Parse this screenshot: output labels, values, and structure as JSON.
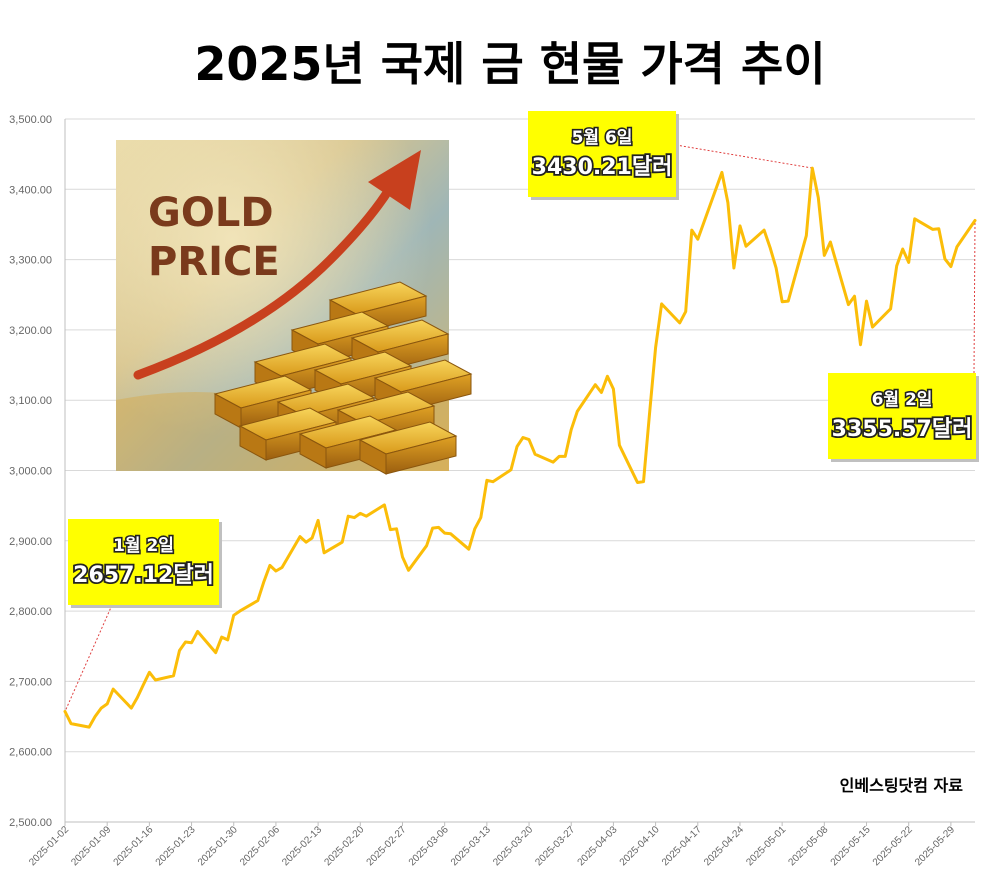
{
  "chart_data": {
    "type": "line",
    "title": "2025년 국제 금 현물 가격 추이",
    "xlabel": "",
    "ylabel": "",
    "ylim": [
      2500,
      3500
    ],
    "y_ticks": [
      "2,500.00",
      "2,600.00",
      "2,700.00",
      "2,800.00",
      "2,900.00",
      "3,000.00",
      "3,100.00",
      "3,200.00",
      "3,300.00",
      "3,400.00",
      "3,500.00"
    ],
    "x_ticks": [
      "2025-01-02",
      "2025-01-09",
      "2025-01-16",
      "2025-01-23",
      "2025-01-30",
      "2025-02-06",
      "2025-02-13",
      "2025-02-20",
      "2025-02-27",
      "2025-03-06",
      "2025-03-13",
      "2025-03-20",
      "2025-03-27",
      "2025-04-03",
      "2025-04-10",
      "2025-04-17",
      "2025-04-24",
      "2025-05-01",
      "2025-05-08",
      "2025-05-15",
      "2025-05-22",
      "2025-05-29"
    ],
    "grid": true,
    "legend": "none",
    "series_color": "#fbbd08",
    "series": [
      {
        "x": [
          "2025-01-02",
          "2025-01-03",
          "2025-01-06",
          "2025-01-07",
          "2025-01-08",
          "2025-01-09",
          "2025-01-10",
          "2025-01-13",
          "2025-01-14",
          "2025-01-15",
          "2025-01-16",
          "2025-01-17",
          "2025-01-20",
          "2025-01-21",
          "2025-01-22",
          "2025-01-23",
          "2025-01-24",
          "2025-01-27",
          "2025-01-28",
          "2025-01-29",
          "2025-01-30",
          "2025-01-31",
          "2025-02-03",
          "2025-02-04",
          "2025-02-05",
          "2025-02-06",
          "2025-02-07",
          "2025-02-10",
          "2025-02-11",
          "2025-02-12",
          "2025-02-13",
          "2025-02-14",
          "2025-02-17",
          "2025-02-18",
          "2025-02-19",
          "2025-02-20",
          "2025-02-21",
          "2025-02-24",
          "2025-02-25",
          "2025-02-26",
          "2025-02-27",
          "2025-02-28",
          "2025-03-03",
          "2025-03-04",
          "2025-03-05",
          "2025-03-06",
          "2025-03-07",
          "2025-03-10",
          "2025-03-11",
          "2025-03-12",
          "2025-03-13",
          "2025-03-14",
          "2025-03-17",
          "2025-03-18",
          "2025-03-19",
          "2025-03-20",
          "2025-03-21",
          "2025-03-24",
          "2025-03-25",
          "2025-03-26",
          "2025-03-27",
          "2025-03-28",
          "2025-03-31",
          "2025-04-01",
          "2025-04-02",
          "2025-04-03",
          "2025-04-04",
          "2025-04-07",
          "2025-04-08",
          "2025-04-09",
          "2025-04-10",
          "2025-04-11",
          "2025-04-14",
          "2025-04-15",
          "2025-04-16",
          "2025-04-17",
          "2025-04-21",
          "2025-04-22",
          "2025-04-23",
          "2025-04-24",
          "2025-04-25",
          "2025-04-28",
          "2025-04-29",
          "2025-04-30",
          "2025-05-01",
          "2025-05-02",
          "2025-05-05",
          "2025-05-06",
          "2025-05-07",
          "2025-05-08",
          "2025-05-09",
          "2025-05-12",
          "2025-05-13",
          "2025-05-14",
          "2025-05-15",
          "2025-05-16",
          "2025-05-19",
          "2025-05-20",
          "2025-05-21",
          "2025-05-22",
          "2025-05-23",
          "2025-05-26",
          "2025-05-27",
          "2025-05-28",
          "2025-05-29",
          "2025-05-30",
          "2025-06-02"
        ],
        "values": [
          2657.12,
          2640,
          2635,
          2650,
          2662,
          2668,
          2689,
          2662,
          2677,
          2695,
          2713,
          2702,
          2708,
          2744,
          2756,
          2755,
          2771,
          2741,
          2763,
          2759,
          2794,
          2800,
          2815,
          2842,
          2865,
          2857,
          2862,
          2906,
          2898,
          2904,
          2929,
          2883,
          2898,
          2935,
          2933,
          2939,
          2935,
          2951,
          2916,
          2917,
          2877,
          2858,
          2893,
          2918,
          2919,
          2911,
          2910,
          2888,
          2917,
          2933,
          2986,
          2984,
          3001,
          3034,
          3047,
          3044,
          3023,
          3012,
          3020,
          3020,
          3058,
          3084,
          3122,
          3111,
          3134,
          3116,
          3036,
          2983,
          2984,
          3082,
          3175,
          3237,
          3210,
          3226,
          3342,
          3329,
          3424,
          3381,
          3288,
          3348,
          3319,
          3342,
          3317,
          3288,
          3240,
          3241,
          3334,
          3430.21,
          3388,
          3306,
          3325,
          3236,
          3248,
          3179,
          3241,
          3204,
          3230,
          3291,
          3315,
          3296,
          3358,
          3343,
          3344,
          3301,
          3290,
          3318,
          3355.57
        ]
      }
    ],
    "annotations": [
      {
        "date": "1월 2일",
        "value": "2657.12달러"
      },
      {
        "date": "5월 6일",
        "value": "3430.21달러"
      },
      {
        "date": "6월 2일",
        "value": "3355.57달러"
      }
    ],
    "inset_image": {
      "line1": "GOLD",
      "line2": "PRICE",
      "icon": "gold-bars-with-rising-arrow"
    },
    "source": "인베스팅닷컴 자료",
    "colors": {
      "callout": "#ffff00",
      "leader": "#e04040",
      "grid": "#d9d9d9"
    }
  }
}
